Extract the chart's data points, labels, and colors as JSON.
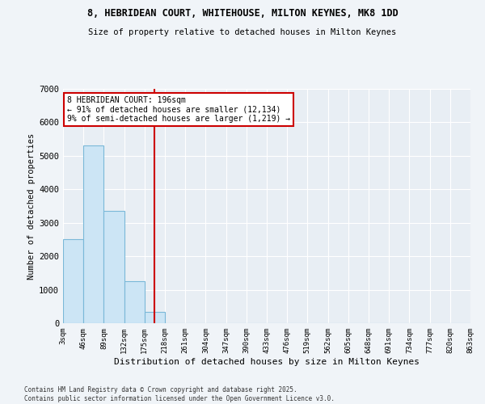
{
  "title_line1": "8, HEBRIDEAN COURT, WHITEHOUSE, MILTON KEYNES, MK8 1DD",
  "title_line2": "Size of property relative to detached houses in Milton Keynes",
  "xlabel": "Distribution of detached houses by size in Milton Keynes",
  "ylabel": "Number of detached properties",
  "annotation_title": "8 HEBRIDEAN COURT: 196sqm",
  "annotation_line2": "← 91% of detached houses are smaller (12,134)",
  "annotation_line3": "9% of semi-detached houses are larger (1,219) →",
  "property_size": 196,
  "bin_edges": [
    3,
    46,
    89,
    132,
    175,
    218,
    261,
    304,
    347,
    390,
    433,
    476,
    519,
    562,
    605,
    648,
    691,
    734,
    777,
    820,
    863
  ],
  "bar_heights": [
    2500,
    5300,
    3350,
    1250,
    350,
    0,
    0,
    0,
    0,
    0,
    0,
    0,
    0,
    0,
    0,
    0,
    0,
    0,
    0,
    0
  ],
  "bar_color": "#cce5f5",
  "bar_edge_color": "#7ab8d8",
  "vline_color": "#cc0000",
  "annotation_box_color": "#cc0000",
  "background_color": "#f0f4f8",
  "plot_bg_color": "#e8eef4",
  "grid_color": "#ffffff",
  "ylim": [
    0,
    7000
  ],
  "yticks": [
    0,
    1000,
    2000,
    3000,
    4000,
    5000,
    6000,
    7000
  ],
  "footer_line1": "Contains HM Land Registry data © Crown copyright and database right 2025.",
  "footer_line2": "Contains public sector information licensed under the Open Government Licence v3.0."
}
